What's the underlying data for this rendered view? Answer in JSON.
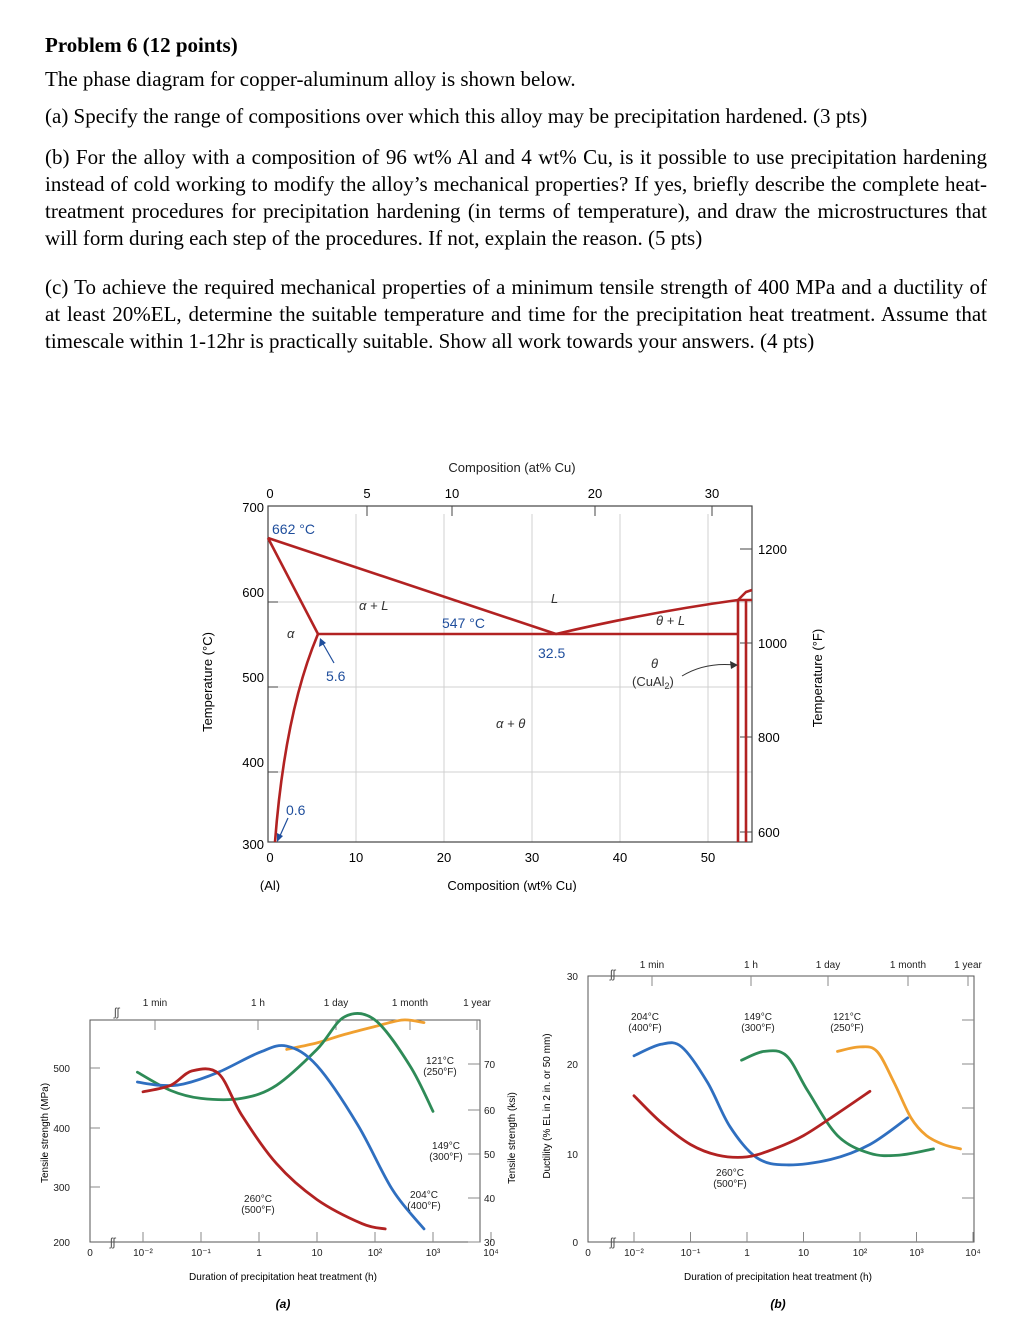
{
  "problem": {
    "title": "Problem 6 (12 points)",
    "intro": "The phase diagram for copper-aluminum alloy is shown below.",
    "part_a": "(a) Specify the range of compositions over which this alloy may be precipitation hardened. (3 pts)",
    "part_b": "(b) For the alloy with a composition of 96 wt% Al and 4 wt% Cu, is it possible to use precipitation hardening instead of cold working to modify the alloy’s mechanical properties? If yes, briefly describe the complete heat-treatment procedures for precipitation hardening (in terms of temperature), and draw the microstructures that will form during each step of the procedures. If not, explain the reason. (5 pts)",
    "part_c": "(c) To achieve the required mechanical properties of a minimum tensile strength of 400 MPa and a ductility of at least 20%EL, determine the suitable temperature and time for the precipitation heat treatment. Assume that timescale within 1-12hr is practically suitable. Show all work towards your answers. (4 pts)"
  },
  "phase_diagram": {
    "top_axis_label": "Composition (at% Cu)",
    "top_ticks": [
      "0",
      "5",
      "10",
      "20",
      "30"
    ],
    "bottom_axis_label": "Composition (wt% Cu)",
    "bottom_ticks": [
      "0",
      "10",
      "20",
      "30",
      "40",
      "50"
    ],
    "bottom_left_sub": "(Al)",
    "left_axis_label": "Temperature (°C)",
    "left_ticks": [
      "700",
      "600",
      "500",
      "400",
      "300"
    ],
    "right_axis_label": "Temperature (°F)",
    "right_ticks": [
      "1200",
      "1000",
      "800",
      "600"
    ],
    "labels": {
      "melt": "662 °C",
      "eutectic_temp": "547 °C",
      "eutectic_comp": "32.5",
      "max_sol": "5.6",
      "min_sol": "0.6",
      "alpha": "α",
      "alpha_L": "α + L",
      "L": "L",
      "theta_L": "θ + L",
      "alpha_theta": "α + θ",
      "theta": "θ",
      "cual2": "(CuAl",
      "cual2_sub": "2",
      "cual2_close": ")"
    },
    "colors": {
      "phase_lines": "#b22222",
      "annotation": "#1f4e9c",
      "grid": "#d0d0d0"
    }
  },
  "chart_data": [
    {
      "type": "line",
      "panel": "(a)",
      "xlabel": "Duration of precipitation heat treatment (h)",
      "x_scale": "log",
      "x_ticks": [
        "0",
        "10⁻²",
        "10⁻¹",
        "1",
        "10",
        "10²",
        "10³",
        "10⁴"
      ],
      "time_labels": [
        "1 min",
        "1 h",
        "1 day",
        "1 month",
        "1 year"
      ],
      "ylabel": "Tensile strength (MPa)",
      "y_ticks": [
        "200",
        "300",
        "400",
        "500"
      ],
      "ylim": [
        200,
        540
      ],
      "y2label": "Tensile strength (ksi)",
      "y2_ticks": [
        "30",
        "40",
        "50",
        "60",
        "70"
      ],
      "series": [
        {
          "name": "121°C (250°F)",
          "color": "#f0a030",
          "x": [
            3,
            10,
            30,
            100,
            300,
            700
          ],
          "y": [
            495,
            505,
            518,
            530,
            540,
            536
          ]
        },
        {
          "name": "149°C (300°F)",
          "color": "#2e8b57",
          "x": [
            0.008,
            0.03,
            0.1,
            0.5,
            2,
            10,
            30,
            100,
            400,
            1000
          ],
          "y": [
            460,
            432,
            420,
            420,
            440,
            495,
            545,
            540,
            470,
            400
          ]
        },
        {
          "name": "204°C (400°F)",
          "color": "#2f6fc0",
          "x": [
            0.008,
            0.02,
            0.05,
            0.2,
            1,
            3,
            10,
            50,
            200,
            700
          ],
          "y": [
            445,
            440,
            442,
            460,
            490,
            500,
            470,
            380,
            280,
            220
          ]
        },
        {
          "name": "260°C (500°F)",
          "color": "#b22222",
          "x": [
            0.01,
            0.03,
            0.07,
            0.2,
            0.5,
            2,
            10,
            60,
            150
          ],
          "y": [
            430,
            440,
            462,
            458,
            395,
            320,
            265,
            228,
            220
          ]
        }
      ]
    },
    {
      "type": "line",
      "panel": "(b)",
      "xlabel": "Duration of precipitation heat treatment (h)",
      "x_scale": "log",
      "x_ticks": [
        "0",
        "10⁻²",
        "10⁻¹",
        "1",
        "10",
        "10²",
        "10³",
        "10⁴"
      ],
      "time_labels": [
        "1 min",
        "1 h",
        "1 day",
        "1 month",
        "1 year"
      ],
      "ylabel": "Ductility (% EL in 2 in. or 50 mm)",
      "y_ticks": [
        "0",
        "10",
        "20",
        "30"
      ],
      "ylim": [
        0,
        30
      ],
      "series": [
        {
          "name": "204°C (400°F)",
          "color": "#2f6fc0",
          "x": [
            0.01,
            0.03,
            0.07,
            0.2,
            0.5,
            1.5,
            5,
            30,
            150,
            700
          ],
          "y": [
            21,
            22.3,
            22,
            18,
            13,
            9.5,
            8.7,
            9.3,
            11,
            14
          ]
        },
        {
          "name": "149°C (300°F)",
          "color": "#2e8b57",
          "x": [
            0.8,
            2,
            5,
            12,
            40,
            150,
            500,
            2000
          ],
          "y": [
            20.5,
            21.5,
            21,
            17,
            12,
            10,
            9.8,
            10.5
          ]
        },
        {
          "name": "121°C (250°F)",
          "color": "#f0a030",
          "x": [
            40,
            100,
            200,
            400,
            800,
            1500,
            3000,
            6000
          ],
          "y": [
            21.5,
            22,
            21.5,
            18,
            14,
            12,
            11,
            10.5
          ]
        },
        {
          "name": "260°C (500°F)",
          "color": "#b22222",
          "x": [
            0.01,
            0.03,
            0.1,
            0.3,
            1,
            3,
            10,
            40,
            150
          ],
          "y": [
            16.5,
            13.5,
            11,
            9.8,
            9.6,
            10.5,
            12,
            14.5,
            17
          ]
        }
      ]
    }
  ],
  "panel_labels": {
    "a": "(a)",
    "b": "(b)"
  }
}
